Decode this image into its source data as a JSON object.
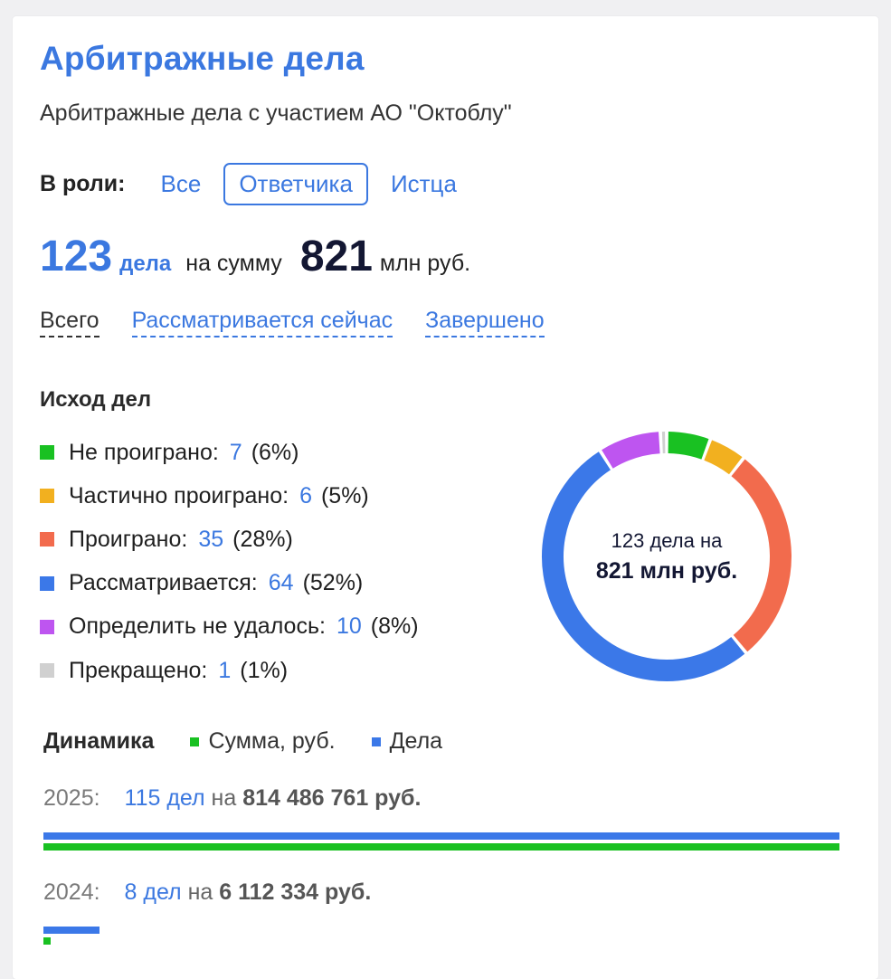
{
  "header": {
    "title": "Арбитражные дела",
    "subtitle": "Арбитражные дела с участием АО \"Октоблу\""
  },
  "roles": {
    "label": "В роли:",
    "options": [
      {
        "label": "Все",
        "active": false
      },
      {
        "label": "Ответчика",
        "active": true
      },
      {
        "label": "Истца",
        "active": false
      }
    ]
  },
  "summary": {
    "count": "123",
    "count_word": "дела",
    "on_sum": "на сумму",
    "sum": "821",
    "unit": "млн руб."
  },
  "filters": [
    {
      "label": "Всего",
      "active": true
    },
    {
      "label": "Рассматривается сейчас",
      "active": false
    },
    {
      "label": "Завершено",
      "active": false
    }
  ],
  "outcomes": {
    "title": "Исход дел",
    "items": [
      {
        "label": "Не проиграно:",
        "count": "7",
        "pct": "(6%)",
        "color": "#19c122",
        "value": 7
      },
      {
        "label": "Частично проиграно:",
        "count": "6",
        "pct": "(5%)",
        "color": "#f2b01f",
        "value": 6
      },
      {
        "label": "Проиграно:",
        "count": "35",
        "pct": "(28%)",
        "color": "#f26b4d",
        "value": 35
      },
      {
        "label": "Рассматривается:",
        "count": "64",
        "pct": "(52%)",
        "color": "#3b78e8",
        "value": 64
      },
      {
        "label": "Определить не удалось:",
        "count": "10",
        "pct": "(8%)",
        "color": "#be55f0",
        "value": 10
      },
      {
        "label": "Прекращено:",
        "count": "1",
        "pct": "(1%)",
        "color": "#d0d0d0",
        "value": 1
      }
    ],
    "center_line1": "123 дела на",
    "center_line2": "821 млн руб."
  },
  "dynamics": {
    "title": "Динамика",
    "legend": [
      {
        "label": "Сумма, руб.",
        "color": "#19c122"
      },
      {
        "label": "Дела",
        "color": "#3b78e8"
      }
    ],
    "years": [
      {
        "year": "2025:",
        "cases": "115 дел",
        "on": "на",
        "sum": "814 486 761 руб.",
        "cases_fraction": 1.0,
        "sum_fraction": 1.0
      },
      {
        "year": "2024:",
        "cases": "8 дел",
        "on": "на",
        "sum": "6 112 334 руб.",
        "cases_fraction": 0.07,
        "sum_fraction": 0.0075
      }
    ]
  }
}
